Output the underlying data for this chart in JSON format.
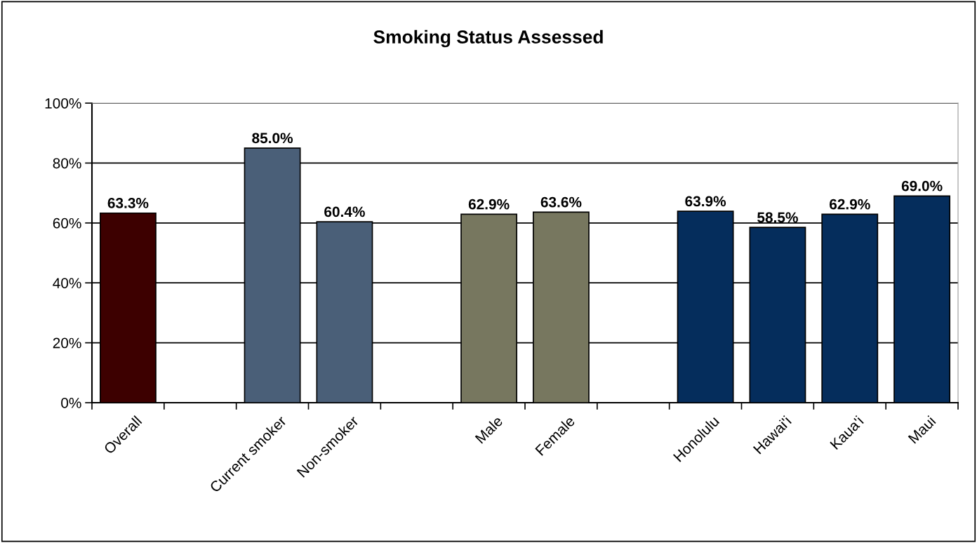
{
  "chart_data": {
    "type": "bar",
    "title": "Smoking Status Assessed",
    "categories": [
      "Overall",
      null,
      "Current smoker",
      "Non-smoker",
      null,
      "Male",
      "Female",
      null,
      "Honolulu",
      "Hawai'i",
      "Kaua'i",
      "Maui"
    ],
    "values": [
      63.3,
      null,
      85.0,
      60.4,
      null,
      62.9,
      63.6,
      null,
      63.9,
      58.5,
      62.9,
      69.0
    ],
    "colors": [
      "#3d0000",
      null,
      "#4a5f78",
      "#4a5f78",
      null,
      "#77775f",
      "#77775f",
      null,
      "#052d5c",
      "#052d5c",
      "#052d5c",
      "#052d5c"
    ],
    "value_labels": [
      "63.3%",
      null,
      "85.0%",
      "60.4%",
      null,
      "62.9%",
      "63.6%",
      null,
      "63.9%",
      "58.5%",
      "62.9%",
      "69.0%"
    ],
    "ylim": [
      0,
      100
    ],
    "yticks": [
      {
        "value": 0,
        "label": "0%"
      },
      {
        "value": 20,
        "label": "20%"
      },
      {
        "value": 40,
        "label": "40%"
      },
      {
        "value": 60,
        "label": "60%"
      },
      {
        "value": 80,
        "label": "80%"
      },
      {
        "value": 100,
        "label": "100%"
      }
    ],
    "grid": "y",
    "legend": false
  }
}
